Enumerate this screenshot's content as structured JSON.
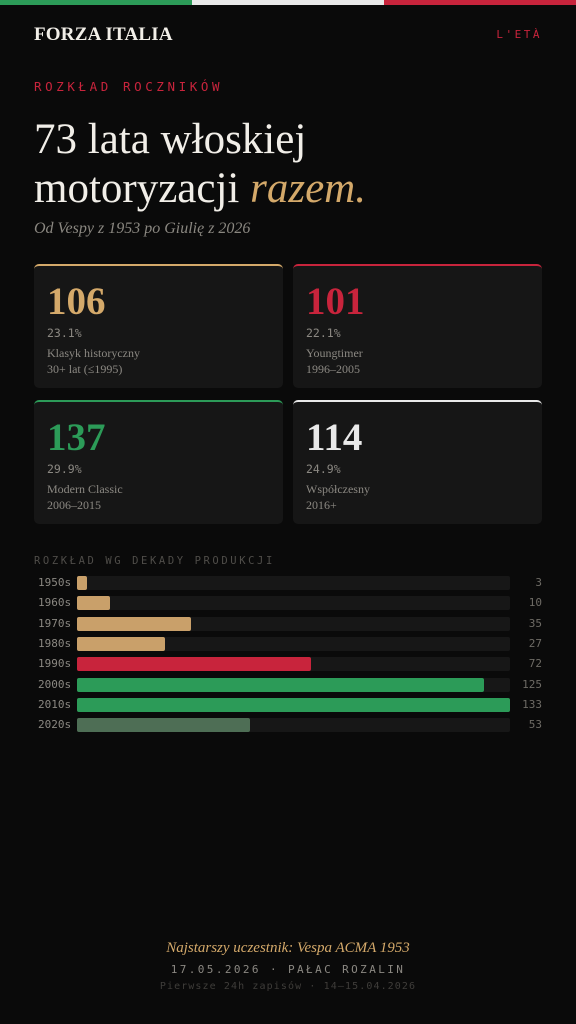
{
  "colors": {
    "green": "#2c9b58",
    "white": "#e9e9e9",
    "red": "#c8243c",
    "gold": "#d4a96a",
    "muted_green": "#4e6e55"
  },
  "header": {
    "brand": "FORZA ITALIA",
    "lang": "L'ETÀ"
  },
  "hero": {
    "kicker": "ROZKŁAD ROCZNIKÓW",
    "line1": "73 lata włoskiej",
    "line2": "motoryzacji ",
    "accent": "razem.",
    "subtitle": "Od Vespy z 1953 po Giulię z 2026"
  },
  "cards": [
    {
      "value": "106",
      "percent": "23.1%",
      "label": "Klasyk historyczny",
      "range": "30+ lat (≤1995)",
      "color": "#d4a96a"
    },
    {
      "value": "101",
      "percent": "22.1%",
      "label": "Youngtimer",
      "range": "1996–2005",
      "color": "#c8243c"
    },
    {
      "value": "137",
      "percent": "29.9%",
      "label": "Modern Classic",
      "range": "2006–2015",
      "color": "#2c9b58"
    },
    {
      "value": "114",
      "percent": "24.9%",
      "label": "Współczesny",
      "range": "2016+",
      "color": "#e9e9e9"
    }
  ],
  "chart_data": {
    "type": "bar",
    "title": "ROZKŁAD WG DEKADY PRODUKCJI",
    "categories": [
      "1950s",
      "1960s",
      "1970s",
      "1980s",
      "1990s",
      "2000s",
      "2010s",
      "2020s"
    ],
    "values": [
      3,
      10,
      35,
      27,
      72,
      125,
      133,
      53
    ],
    "bar_colors": [
      "#c9a06a",
      "#c9a06a",
      "#c9a06a",
      "#c9a06a",
      "#c8243c",
      "#2c9b58",
      "#2c9b58",
      "#4e6e55"
    ],
    "orientation": "horizontal",
    "xlim": [
      0,
      133
    ]
  },
  "footer": {
    "oldest": "Najstarszy uczestnik: Vespa ACMA 1953",
    "event": "17.05.2026 · PAŁAC ROZALIN",
    "note": "Pierwsze 24h zapisów · 14–15.04.2026"
  }
}
